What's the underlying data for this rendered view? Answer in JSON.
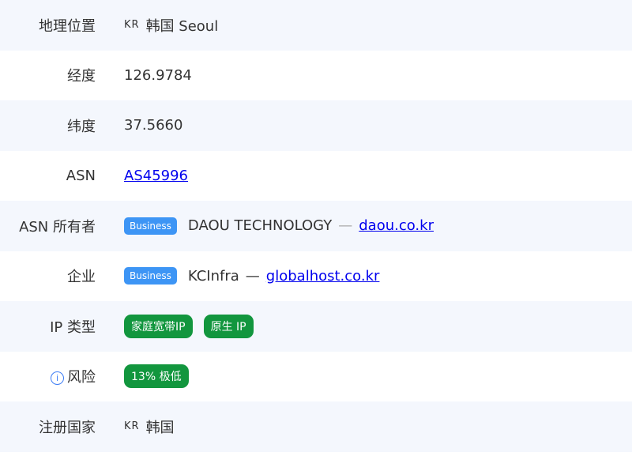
{
  "rows": {
    "location": {
      "label": "地理位置",
      "country_code": "KR",
      "value": "韩国 Seoul"
    },
    "longitude": {
      "label": "经度",
      "value": "126.9784"
    },
    "latitude": {
      "label": "纬度",
      "value": "37.5660"
    },
    "asn": {
      "label": "ASN",
      "link": "AS45996"
    },
    "asn_owner": {
      "label": "ASN 所有者",
      "badge": "Business",
      "name": "DAOU TECHNOLOGY",
      "sep": "—",
      "link": "daou.co.kr"
    },
    "company": {
      "label": "企业",
      "badge": "Business",
      "name": "KCInfra",
      "sep": "—",
      "link": "globalhost.co.kr"
    },
    "ip_type": {
      "label": "IP 类型",
      "tags": [
        "家庭宽带IP",
        "原生 IP"
      ]
    },
    "risk": {
      "label": "风险",
      "info_icon": "i",
      "tag": "13% 极低"
    },
    "reg_country": {
      "label": "注册国家",
      "country_code": "KR",
      "value": "韩国"
    }
  },
  "colors": {
    "business": "#3d95f5",
    "green": "#12963e",
    "alt_row": "#f4f7fd"
  }
}
